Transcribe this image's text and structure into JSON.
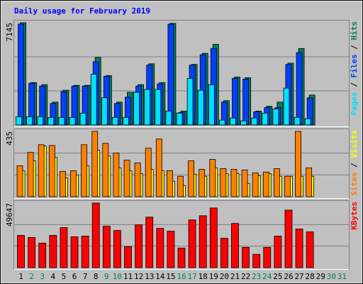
{
  "chart_data": {
    "type": "bar",
    "title": "Daily usage for February 2019",
    "categories": [
      1,
      2,
      3,
      4,
      5,
      6,
      7,
      8,
      9,
      10,
      11,
      12,
      13,
      14,
      15,
      16,
      17,
      18,
      19,
      20,
      21,
      22,
      23,
      24,
      25,
      26,
      27,
      28,
      29,
      30,
      31
    ],
    "category_colors": [
      "#000000",
      "#00805c",
      "#00805c",
      "#000000",
      "#000000",
      "#000000",
      "#000000",
      "#000000",
      "#00805c",
      "#00805c",
      "#000000",
      "#000000",
      "#000000",
      "#000000",
      "#000000",
      "#00805c",
      "#00805c",
      "#000000",
      "#000000",
      "#000000",
      "#000000",
      "#000000",
      "#00805c",
      "#00805c",
      "#000000",
      "#000000",
      "#000000",
      "#000000",
      "#000000",
      "#00805c",
      "#00805c"
    ],
    "legend_separator": " / ",
    "panels": [
      {
        "ylim": [
          0,
          7145
        ],
        "yticks": [
          7145
        ],
        "series": [
          {
            "name": "Pages",
            "color": "#00e0ff",
            "values": [
              580,
              580,
              580,
              530,
              530,
              530,
              830,
              3550,
              1900,
              530,
              530,
              2285,
              2480,
              2480,
              970,
              830,
              3255,
              2430,
              2820,
              340,
              485,
              290,
              485,
              830,
              1120,
              2575,
              530,
              440,
              null,
              null,
              null
            ]
          },
          {
            "name": "Files",
            "color": "#0040ff",
            "values": [
              7050,
              2916,
              2720,
              1500,
              2330,
              2720,
              2720,
              4420,
              3400,
              1500,
              1945,
              2720,
              4180,
              2870,
              7050,
              875,
              4180,
              4910,
              5345,
              1600,
              3255,
              3205,
              920,
              1215,
              1215,
              4230,
              5055,
              1895,
              null,
              null,
              null
            ]
          },
          {
            "name": "Hits",
            "color": "#00805c",
            "values": [
              7145,
              2965,
              2820,
              1600,
              2430,
              2770,
              2770,
              4715,
              3450,
              1600,
              2285,
              2820,
              4275,
              2965,
              7100,
              970,
              4230,
              5005,
              5640,
              1700,
              3355,
              3305,
              970,
              1310,
              1600,
              4325,
              5345,
              2090,
              null,
              null,
              null
            ]
          }
        ]
      },
      {
        "ylim": [
          0,
          435
        ],
        "yticks": [
          435
        ],
        "series": [
          {
            "name": "Sites",
            "color": "#ff8000",
            "values": [
              206,
              295,
              346,
              341,
              168,
              173,
              346,
              435,
              355,
              290,
              243,
              225,
              323,
              384,
              173,
              136,
              239,
              182,
              248,
              187,
              182,
              178,
              159,
              164,
              187,
              136,
              435,
              192,
              null,
              null,
              null
            ]
          },
          {
            "name": "Visits",
            "color": "#ffff00",
            "values": [
              173,
              239,
              337,
              262,
              126,
              145,
              206,
              309,
              271,
              192,
              173,
              154,
              182,
              173,
              103,
              75,
              150,
              136,
              192,
              154,
              154,
              89,
              140,
              154,
              136,
              136,
              136,
              136,
              null,
              null,
              null
            ]
          }
        ]
      },
      {
        "ylim": [
          0,
          49647
        ],
        "yticks": [
          49647
        ],
        "series": [
          {
            "name": "KBytes",
            "color": "#ff0000",
            "values": [
              24825,
              23205,
              18890,
              24825,
              30760,
              23745,
              24285,
              49647,
              31840,
              28600,
              16190,
              32920,
              38855,
              30220,
              28060,
              15110,
              36695,
              39935,
              45870,
              22665,
              34000,
              15650,
              10255,
              15650,
              24285,
              44250,
              29680,
              27520,
              null,
              null,
              null
            ]
          }
        ]
      }
    ]
  }
}
